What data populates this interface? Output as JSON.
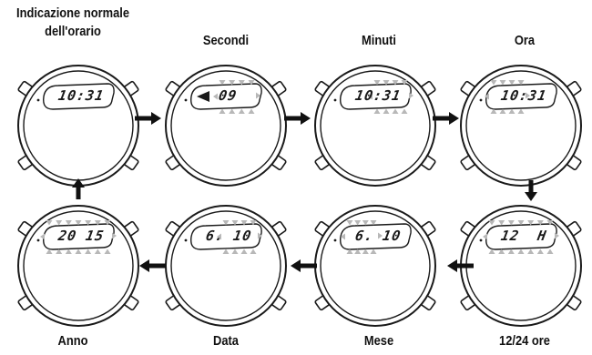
{
  "steps": [
    {
      "label_l1": "Indicazione normale",
      "label_l2": "dell'orario",
      "display": "10:31",
      "blink": []
    },
    {
      "label_l1": "Secondi",
      "display": "09",
      "blink": [
        "left-mark"
      ]
    },
    {
      "label_l1": "Minuti",
      "display": "10:31",
      "blink": []
    },
    {
      "label_l1": "Ora",
      "display": "10:31",
      "blink": []
    },
    {
      "label_l1": "12/24 ore",
      "display": "12  H",
      "blink": []
    },
    {
      "label_l1": "Mese",
      "display": "6. 10",
      "blink": []
    },
    {
      "label_l1": "Data",
      "display": "6. 10",
      "blink": []
    },
    {
      "label_l1": "Anno",
      "display": "20 15",
      "blink": []
    }
  ],
  "colors": {
    "outline": "#1a1a1a",
    "blink_marker": "#b8b8b8",
    "arrow": "#111111"
  },
  "flow": [
    "arrow-right",
    "arrow-right",
    "arrow-right",
    "arrow-down",
    "arrow-left",
    "arrow-left",
    "arrow-left",
    "arrow-up"
  ]
}
